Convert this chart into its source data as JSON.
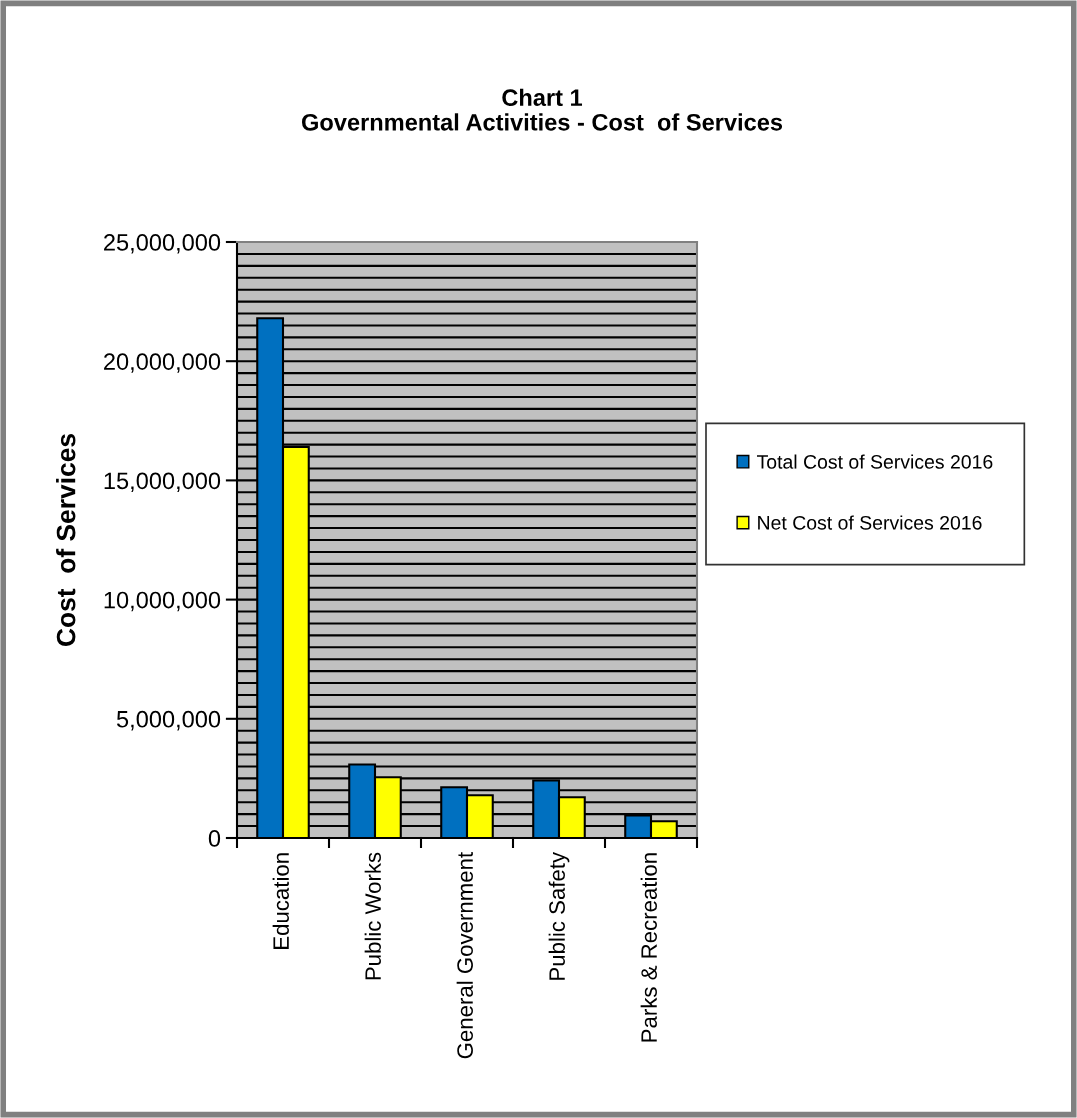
{
  "chart_data": {
    "type": "bar",
    "title": "Chart 1\nGovernmental Activities - Cost  of Services",
    "ylabel": "Cost  of Services",
    "categories": [
      "Education",
      "Public Works",
      "General Government",
      "Public Safety",
      "Parks & Recreation"
    ],
    "series": [
      {
        "name": "Total Cost of Services 2016",
        "color": "#0070c0",
        "values": [
          21800000,
          3080000,
          2130000,
          2410000,
          950000
        ]
      },
      {
        "name": "Net Cost of Services 2016",
        "color": "#ffff00",
        "values": [
          16400000,
          2550000,
          1790000,
          1710000,
          700000
        ]
      }
    ],
    "ylim": [
      0,
      25000000
    ],
    "yticks": [
      {
        "value": 0,
        "label": "0"
      },
      {
        "value": 500000,
        "label": null
      },
      {
        "value": 1000000,
        "label": null
      },
      {
        "value": 1500000,
        "label": null
      },
      {
        "value": 2000000,
        "label": null
      },
      {
        "value": 2500000,
        "label": null
      },
      {
        "value": 3000000,
        "label": null
      },
      {
        "value": 3500000,
        "label": null
      },
      {
        "value": 4000000,
        "label": null
      },
      {
        "value": 4500000,
        "label": null
      },
      {
        "value": 5000000,
        "label": "5,000,000"
      },
      {
        "value": 5500000,
        "label": null
      },
      {
        "value": 6000000,
        "label": null
      },
      {
        "value": 6500000,
        "label": null
      },
      {
        "value": 7000000,
        "label": null
      },
      {
        "value": 7500000,
        "label": null
      },
      {
        "value": 8000000,
        "label": null
      },
      {
        "value": 8500000,
        "label": null
      },
      {
        "value": 9000000,
        "label": null
      },
      {
        "value": 9500000,
        "label": null
      },
      {
        "value": 10000000,
        "label": "10,000,000"
      },
      {
        "value": 10500000,
        "label": null
      },
      {
        "value": 11000000,
        "label": null
      },
      {
        "value": 11500000,
        "label": null
      },
      {
        "value": 12000000,
        "label": null
      },
      {
        "value": 12500000,
        "label": null
      },
      {
        "value": 13000000,
        "label": null
      },
      {
        "value": 13500000,
        "label": null
      },
      {
        "value": 14000000,
        "label": null
      },
      {
        "value": 14500000,
        "label": null
      },
      {
        "value": 15000000,
        "label": "15,000,000"
      },
      {
        "value": 15500000,
        "label": null
      },
      {
        "value": 16000000,
        "label": null
      },
      {
        "value": 16500000,
        "label": null
      },
      {
        "value": 17000000,
        "label": null
      },
      {
        "value": 17500000,
        "label": null
      },
      {
        "value": 18000000,
        "label": null
      },
      {
        "value": 18500000,
        "label": null
      },
      {
        "value": 19000000,
        "label": null
      },
      {
        "value": 19500000,
        "label": null
      },
      {
        "value": 20000000,
        "label": "20,000,000"
      },
      {
        "value": 20500000,
        "label": null
      },
      {
        "value": 21000000,
        "label": null
      },
      {
        "value": 21500000,
        "label": null
      },
      {
        "value": 22000000,
        "label": null
      },
      {
        "value": 22500000,
        "label": null
      },
      {
        "value": 23000000,
        "label": null
      },
      {
        "value": 23500000,
        "label": null
      },
      {
        "value": 24000000,
        "label": null
      },
      {
        "value": 24500000,
        "label": null
      },
      {
        "value": 25000000,
        "label": "25,000,000"
      }
    ],
    "grid": "y",
    "legend": "right"
  }
}
